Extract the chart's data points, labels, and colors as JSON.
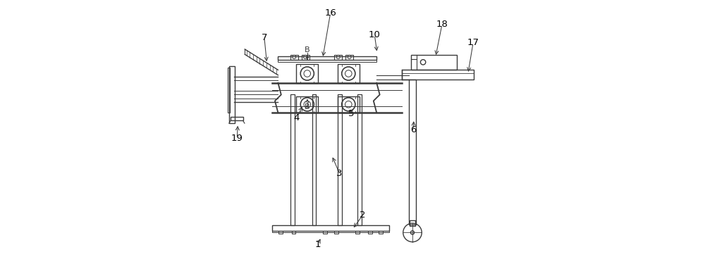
{
  "bg_color": "#ffffff",
  "line_color": "#3a3a3a",
  "line_width": 1.0,
  "thick_line": 1.8,
  "label_fontsize": 9.5,
  "labels": {
    "1": [
      0.365,
      0.945,
      0.38,
      0.915
    ],
    "2": [
      0.54,
      0.83,
      0.5,
      0.885
    ],
    "3": [
      0.45,
      0.67,
      0.42,
      0.6
    ],
    "4": [
      0.285,
      0.455,
      0.31,
      0.405
    ],
    "5": [
      0.495,
      0.44,
      0.5,
      0.415
    ],
    "6": [
      0.735,
      0.5,
      0.736,
      0.46
    ],
    "7": [
      0.16,
      0.145,
      0.17,
      0.245
    ],
    "10": [
      0.585,
      0.135,
      0.595,
      0.205
    ],
    "16": [
      0.415,
      0.05,
      0.385,
      0.225
    ],
    "17": [
      0.965,
      0.165,
      0.945,
      0.285
    ],
    "18": [
      0.845,
      0.095,
      0.82,
      0.22
    ],
    "19": [
      0.055,
      0.535,
      0.058,
      0.478
    ]
  }
}
